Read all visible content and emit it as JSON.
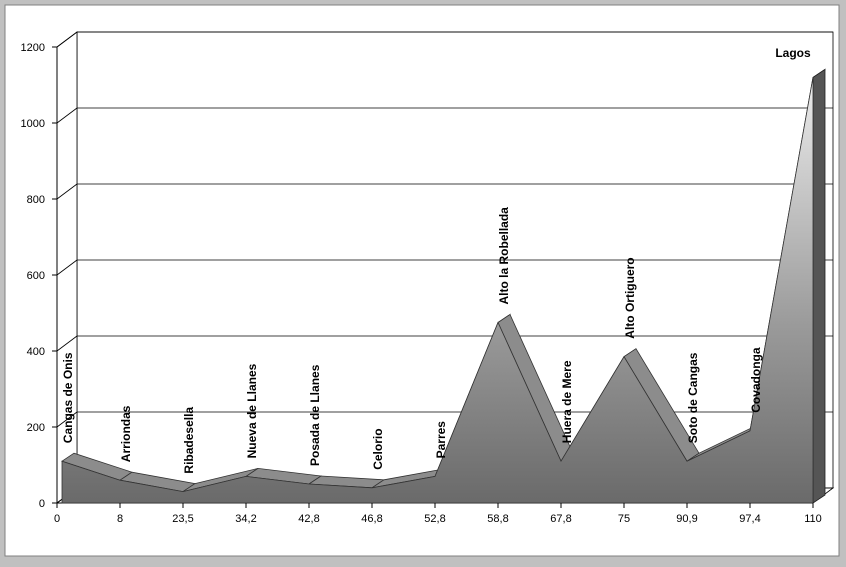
{
  "chart_data": {
    "type": "area3d",
    "categories": [
      "0",
      "8",
      "23,5",
      "34,2",
      "42,8",
      "46,8",
      "52,8",
      "58,8",
      "67,8",
      "75",
      "90,9",
      "97,4",
      "110"
    ],
    "point_labels": [
      "Cangas de Onis",
      "Arriondas",
      "Ribadesella",
      "Nueva de Llanes",
      "Posada de Llanes",
      "Celorio",
      "Parres",
      "Alto la Robellada",
      "Huera de Mere",
      "Alto Ortiguero",
      "Soto de Cangas",
      "Covadonga",
      "Lagos"
    ],
    "values": [
      110,
      60,
      30,
      70,
      50,
      40,
      70,
      475,
      110,
      385,
      110,
      190,
      1120
    ],
    "color": "#909090",
    "ylim": [
      0,
      1200
    ],
    "yticks": [
      0,
      200,
      400,
      600,
      800,
      1000,
      1200
    ],
    "grid": true
  }
}
